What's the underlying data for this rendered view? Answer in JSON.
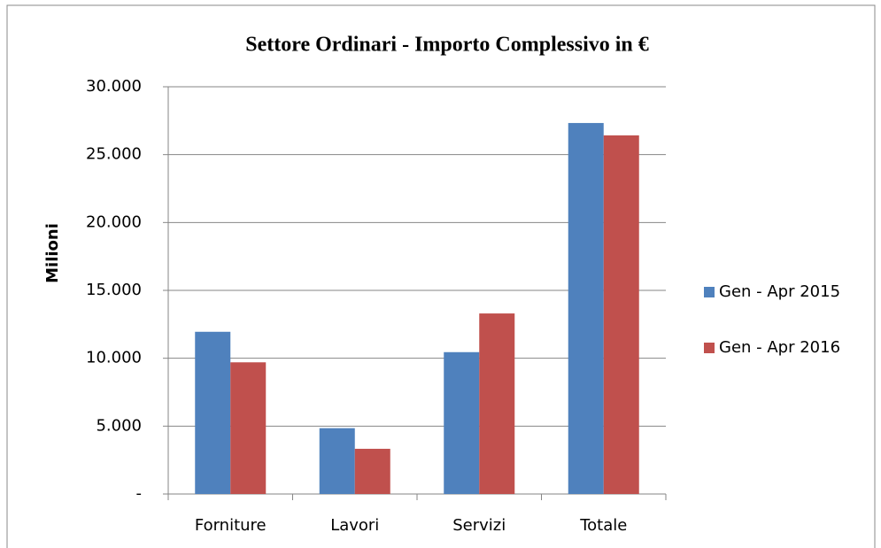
{
  "chart_data": {
    "type": "bar",
    "title": "Settore Ordinari - Importo Complessivo in €",
    "y_label": "Milioni",
    "categories": [
      "Forniture",
      "Lavori",
      "Servizi",
      "Totale"
    ],
    "series": [
      {
        "name": "Gen - Apr 2015",
        "color": "#4f81bd",
        "values": [
          11950,
          4850,
          10450,
          27330
        ]
      },
      {
        "name": "Gen - Apr 2016",
        "color": "#c0504d",
        "values": [
          9700,
          3330,
          13300,
          26420
        ]
      }
    ],
    "ylim": [
      0,
      30000
    ],
    "yticks": [
      {
        "value": 0,
        "label": "-"
      },
      {
        "value": 5000,
        "label": "5.000"
      },
      {
        "value": 10000,
        "label": "10.000"
      },
      {
        "value": 15000,
        "label": "15.000"
      },
      {
        "value": 20000,
        "label": "20.000"
      },
      {
        "value": 25000,
        "label": "25.000"
      },
      {
        "value": 30000,
        "label": "30.000"
      }
    ],
    "grid": true,
    "legend": "right"
  }
}
